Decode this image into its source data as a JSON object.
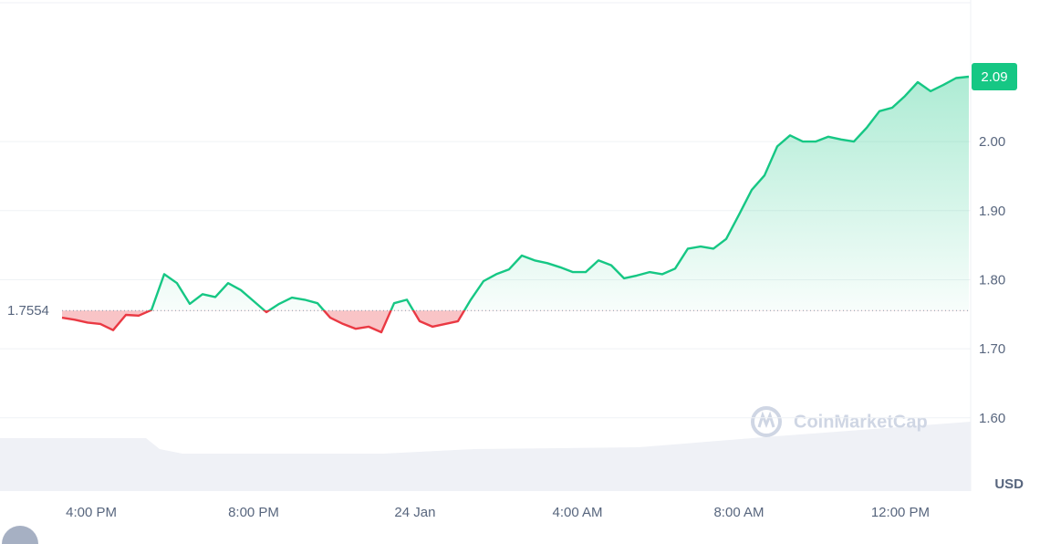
{
  "chart_data": {
    "type": "line",
    "values": [
      1.745,
      1.742,
      1.738,
      1.736,
      1.727,
      1.749,
      1.748,
      1.756,
      1.808,
      1.795,
      1.765,
      1.779,
      1.775,
      1.795,
      1.785,
      1.769,
      1.753,
      1.765,
      1.774,
      1.771,
      1.766,
      1.745,
      1.736,
      1.729,
      1.732,
      1.724,
      1.766,
      1.771,
      1.74,
      1.732,
      1.736,
      1.74,
      1.771,
      1.798,
      1.808,
      1.815,
      1.835,
      1.828,
      1.824,
      1.818,
      1.811,
      1.811,
      1.828,
      1.821,
      1.802,
      1.806,
      1.811,
      1.808,
      1.816,
      1.845,
      1.848,
      1.845,
      1.859,
      1.894,
      1.93,
      1.951,
      1.993,
      2.009,
      2.0,
      2.0,
      2.007,
      2.003,
      2.0,
      2.02,
      2.044,
      2.049,
      2.066,
      2.086,
      2.073,
      2.082,
      2.092,
      2.094
    ],
    "xlim": [
      0,
      71
    ],
    "xticks": [
      {
        "value": 2.29,
        "label": "4:00 PM"
      },
      {
        "value": 15,
        "label": "8:00 PM"
      },
      {
        "value": 27.64,
        "label": "24 Jan"
      },
      {
        "value": 40.36,
        "label": "4:00 AM"
      },
      {
        "value": 53,
        "label": "8:00 AM"
      },
      {
        "value": 65.64,
        "label": "12:00 PM"
      }
    ],
    "ylim": [
      1.494,
      2.205
    ],
    "yticks": [
      {
        "value": 1.6,
        "label": "1.60"
      },
      {
        "value": 1.7,
        "label": "1.70"
      },
      {
        "value": 1.8,
        "label": "1.80"
      },
      {
        "value": 1.9,
        "label": "1.90"
      },
      {
        "value": 2.0,
        "label": "2.00"
      }
    ],
    "baseline": 1.7554,
    "current_label": "2.09",
    "up_color": "#16c784",
    "down_color": "#ea3943",
    "unit": "USD",
    "watermark": "CoinMarketCap",
    "grid": true
  }
}
